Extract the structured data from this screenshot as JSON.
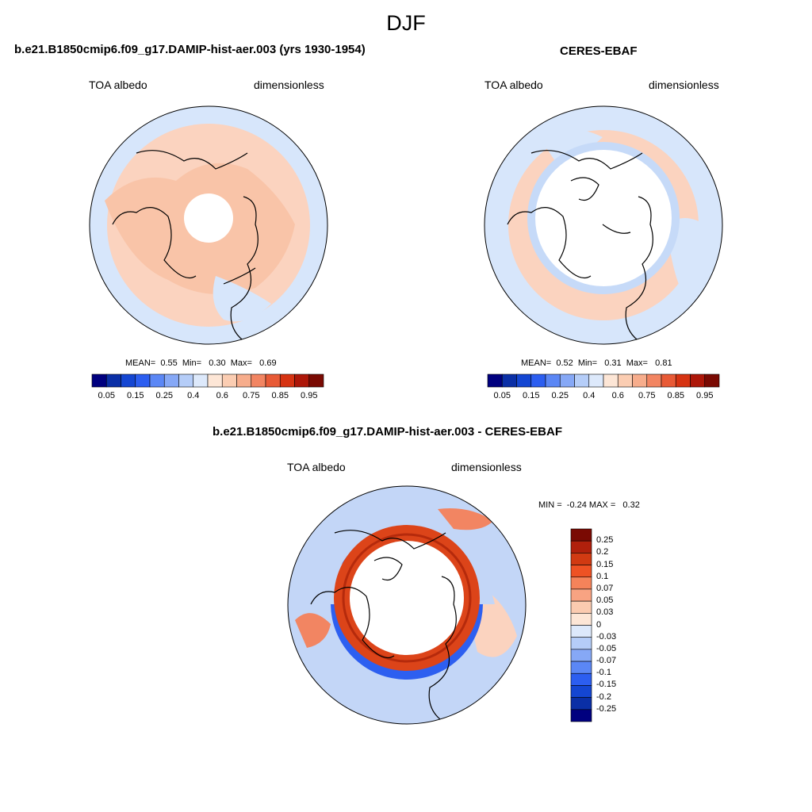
{
  "figure": {
    "title": "DJF",
    "panels": [
      {
        "title": "b.e21.B1850cmip6.f09_g17.DAMIP-hist-aer.003 (yrs 1930-1954)",
        "left_label": "TOA albedo",
        "right_label": "dimensionless",
        "stats": {
          "mean_label": "MEAN=",
          "mean": "0.55",
          "min_label": "Min=",
          "min": "0.30",
          "max_label": "Max=",
          "max": "0.69"
        }
      },
      {
        "title": "CERES-EBAF",
        "left_label": "TOA albedo",
        "right_label": "dimensionless",
        "stats": {
          "mean_label": "MEAN=",
          "mean": "0.52",
          "min_label": "Min=",
          "min": "0.31",
          "max_label": "Max=",
          "max": "0.81"
        }
      },
      {
        "title": "b.e21.B1850cmip6.f09_g17.DAMIP-hist-aer.003 - CERES-EBAF",
        "left_label": "TOA albedo",
        "right_label": "dimensionless",
        "stats": {
          "min_label": "MIN =",
          "min": "-0.24",
          "max_label": "MAX =",
          "max": "0.32"
        }
      }
    ]
  },
  "colorbars": {
    "absolute": {
      "colors": [
        "#00007f",
        "#0a2fa6",
        "#1446d2",
        "#2c5ef0",
        "#5b87f5",
        "#86a8f6",
        "#b5cdf8",
        "#dde9fb",
        "#fde6d6",
        "#fbcdb2",
        "#f7ad8c",
        "#f28562",
        "#e85a36",
        "#d63312",
        "#ad1709",
        "#7a0a03"
      ],
      "tick_labels": [
        "0.05",
        "0.15",
        "0.25",
        "0.4",
        "0.6",
        "0.75",
        "0.85",
        "0.95"
      ]
    },
    "difference": {
      "colors": [
        "#7a0a03",
        "#b0200c",
        "#d13a12",
        "#ee5224",
        "#f5835a",
        "#f8a382",
        "#fbcbb0",
        "#fde6d6",
        "#dde9fb",
        "#b5cdf8",
        "#86a8f6",
        "#5b87f5",
        "#2c5ef0",
        "#1446d2",
        "#0a2fa6",
        "#00007f"
      ],
      "tick_labels": [
        "0.25",
        "0.2",
        "0.15",
        "0.1",
        "0.07",
        "0.05",
        "0.03",
        "0",
        "-0.03",
        "-0.05",
        "-0.07",
        "-0.1",
        "-0.15",
        "-0.2",
        "-0.25"
      ]
    }
  },
  "map_fills": {
    "model": {
      "background": "#d7e6fb",
      "band_color": "#fbd3bf",
      "inner_color": "#f9c4a8",
      "pole_hole": "#ffffff"
    },
    "obs": {
      "background": "#d7e6fb",
      "band_color": "#fbd3bf",
      "ring_color": "#c6daf8",
      "pole_hole": "#ffffff"
    },
    "diff": {
      "background": "#c3d6f7",
      "ring_color": "#dc4419",
      "ring_dark": "#b52a0c",
      "blue_band": "#2d5ff0",
      "pole_hole": "#ffffff"
    }
  }
}
